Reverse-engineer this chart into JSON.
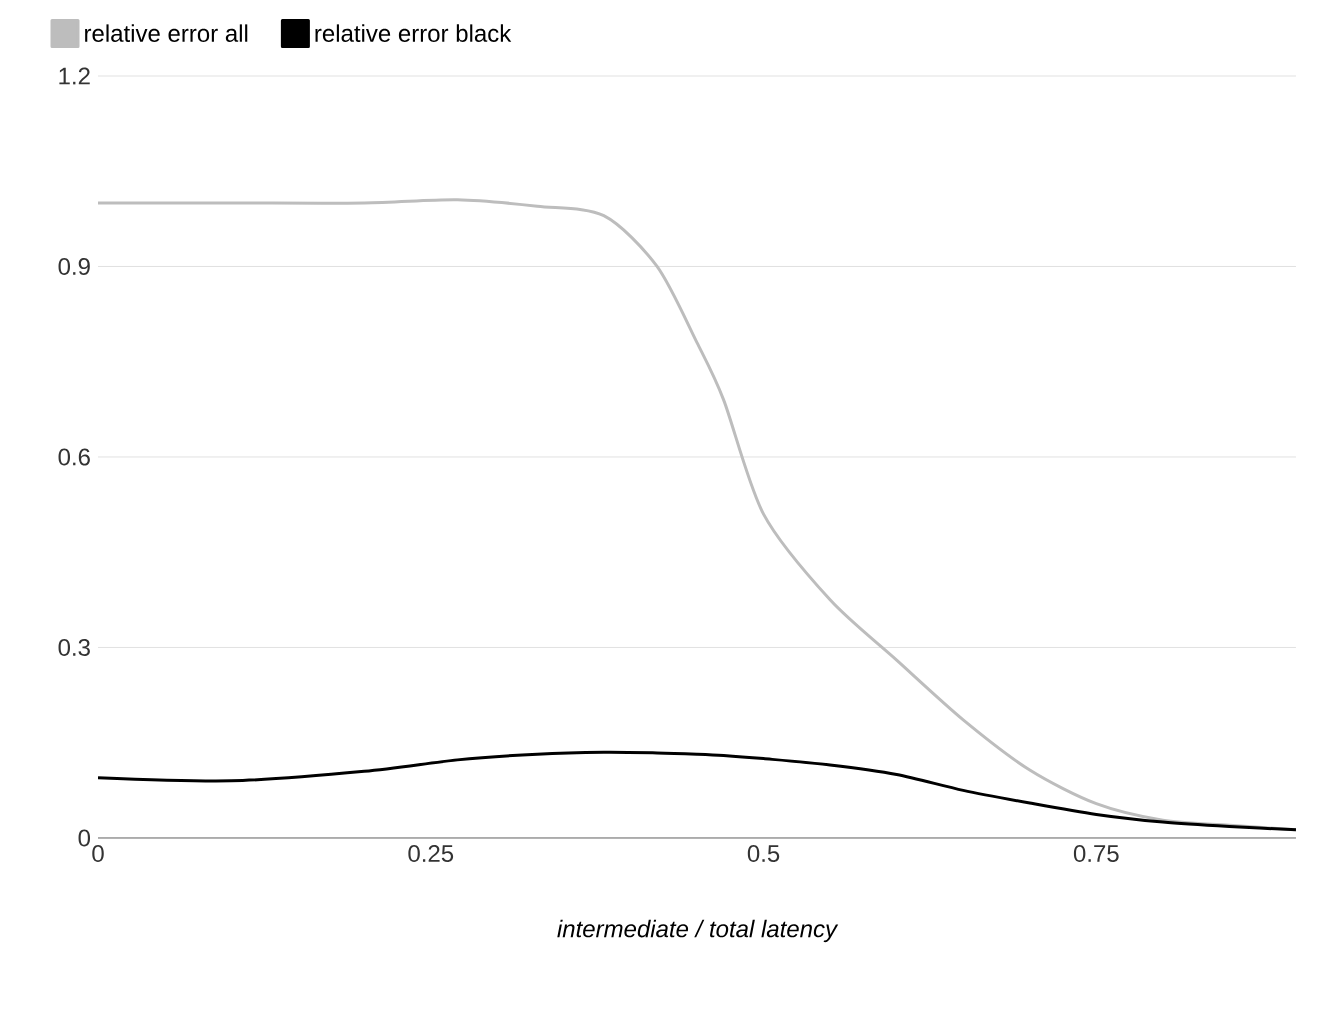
{
  "chart_data": {
    "type": "line",
    "xlabel": "intermediate / total latency",
    "xlim": [
      0,
      0.9
    ],
    "xticks": [
      0,
      0.25,
      0.5,
      0.75
    ],
    "ylim": [
      0,
      1.2
    ],
    "yticks": [
      0,
      0.3,
      0.6,
      0.9,
      1.2
    ],
    "grid": "y",
    "legend": "top left",
    "marker": "none",
    "line_style": "solid",
    "x": [
      0,
      0.1,
      0.2,
      0.27,
      0.33,
      0.38,
      0.42,
      0.45,
      0.47,
      0.5,
      0.55,
      0.6,
      0.65,
      0.7,
      0.75,
      0.8,
      0.85,
      0.9
    ],
    "series": [
      {
        "name": "relative error all",
        "color": "#bdbdbd",
        "values": [
          1.0,
          1.0,
          1.0,
          1.005,
          0.995,
          0.98,
          0.9,
          0.78,
          0.69,
          0.51,
          0.375,
          0.28,
          0.186,
          0.107,
          0.054,
          0.028,
          0.02,
          0.013
        ]
      },
      {
        "name": "relative error black",
        "color": "#000000",
        "values": [
          0.095,
          0.09,
          0.105,
          0.123,
          0.132,
          0.135,
          0.134,
          0.132,
          0.13,
          0.125,
          0.115,
          0.1,
          0.075,
          0.055,
          0.037,
          0.025,
          0.018,
          0.013
        ]
      }
    ]
  }
}
